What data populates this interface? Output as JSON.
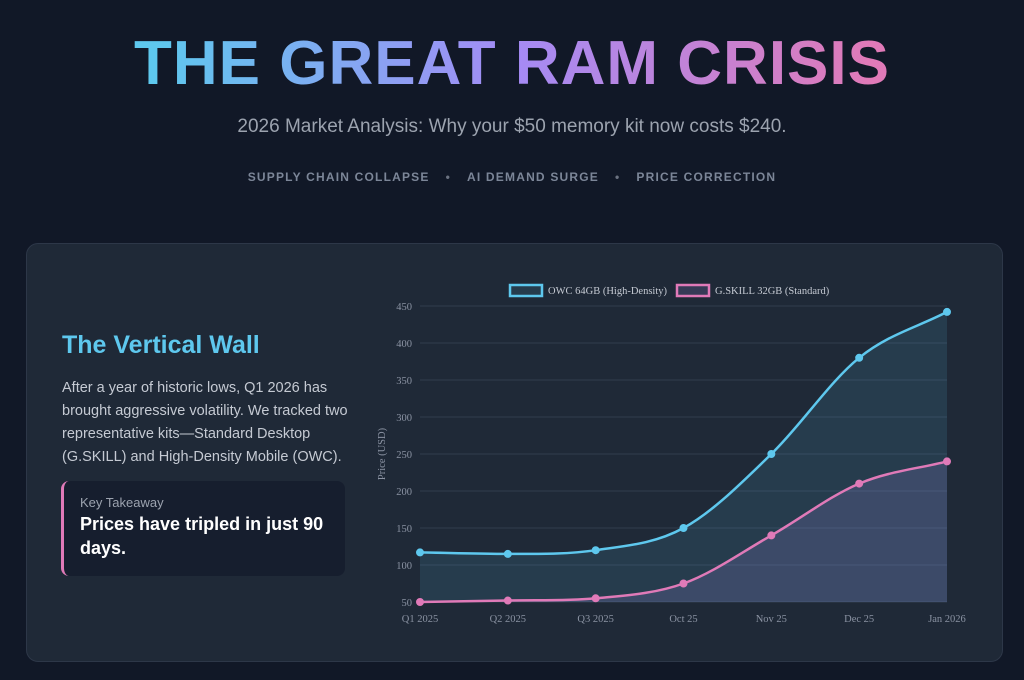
{
  "header": {
    "title": "THE GREAT RAM CRISIS",
    "subtitle": "2026 Market Analysis: Why your $50 memory kit now costs $240.",
    "tags": [
      "SUPPLY CHAIN COLLAPSE",
      "AI DEMAND SURGE",
      "PRICE CORRECTION"
    ],
    "separator": "•"
  },
  "section": {
    "title": "The Vertical Wall",
    "body": "After a year of historic lows, Q1 2026 has brought aggressive volatility. We tracked two representative kits—Standard Desktop (G.SKILL) and High-Density Mobile (OWC).",
    "callout_label": "Key Takeaway",
    "callout_text": "Prices have tripled in just 90 days."
  },
  "chart_data": {
    "type": "line",
    "categories": [
      "Q1 2025",
      "Q2 2025",
      "Q3 2025",
      "Oct 25",
      "Nov 25",
      "Dec 25",
      "Jan 2026"
    ],
    "ylabel": "Price (USD)",
    "ylim": [
      50,
      450
    ],
    "yticks": [
      50,
      100,
      150,
      200,
      250,
      300,
      350,
      400,
      450
    ],
    "grid": true,
    "legend": "top",
    "series": [
      {
        "name": "OWC 64GB (High-Density)",
        "color": "#5ec8ee",
        "values": [
          117,
          115,
          120,
          150,
          250,
          380,
          442
        ]
      },
      {
        "name": "G.SKILL 32GB (Standard)",
        "color": "#e07ab8",
        "values": [
          50,
          52,
          55,
          75,
          140,
          210,
          240
        ]
      }
    ]
  }
}
